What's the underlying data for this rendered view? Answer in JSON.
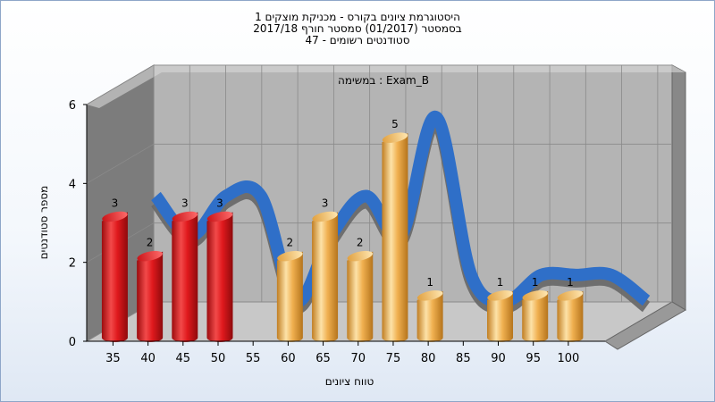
{
  "header": {
    "title_lines": [
      "היסטוגרמת ציונים בקורס - מכניקת מוצקים 1",
      "בסמסטר (01/2017) סמסטר חורף 2017/18",
      "סטודנטים רשומים - 47"
    ]
  },
  "colors": {
    "red_bar": "#e0191d",
    "orange_bar": "#f0b050",
    "ribbon_front": "#2f6fc8",
    "ribbon_back": "#6a6a6a",
    "back_wall": "#b4b4b4",
    "left_wall": "#7c7c7c"
  },
  "chart_data": {
    "type": "bar",
    "title": "היסטוגרמת ציונים בקורס - מכניקת מוצקים 1",
    "subtitle": "בסמסטר (01/2017) סמסטר חורף 2017/18 | סטודנטים רשומים - 47",
    "annotation": "Exam_B : במשימה",
    "xlabel": "טווח ציונים",
    "ylabel": "מספר סטודנטים",
    "ylim": [
      0,
      6
    ],
    "yticks": [
      0,
      2,
      4,
      6
    ],
    "categories": [
      "35",
      "40",
      "45",
      "50",
      "55",
      "60",
      "65",
      "70",
      "75",
      "80",
      "85",
      "90",
      "95",
      "100"
    ],
    "values": [
      3,
      2,
      3,
      3,
      null,
      2,
      3,
      2,
      5,
      1,
      null,
      1,
      1,
      1
    ],
    "bar_colors": [
      "red",
      "red",
      "red",
      "red",
      null,
      "orange",
      "orange",
      "orange",
      "orange",
      "orange",
      null,
      "orange",
      "orange",
      "orange"
    ],
    "smooth_curve": true,
    "grid": true
  }
}
